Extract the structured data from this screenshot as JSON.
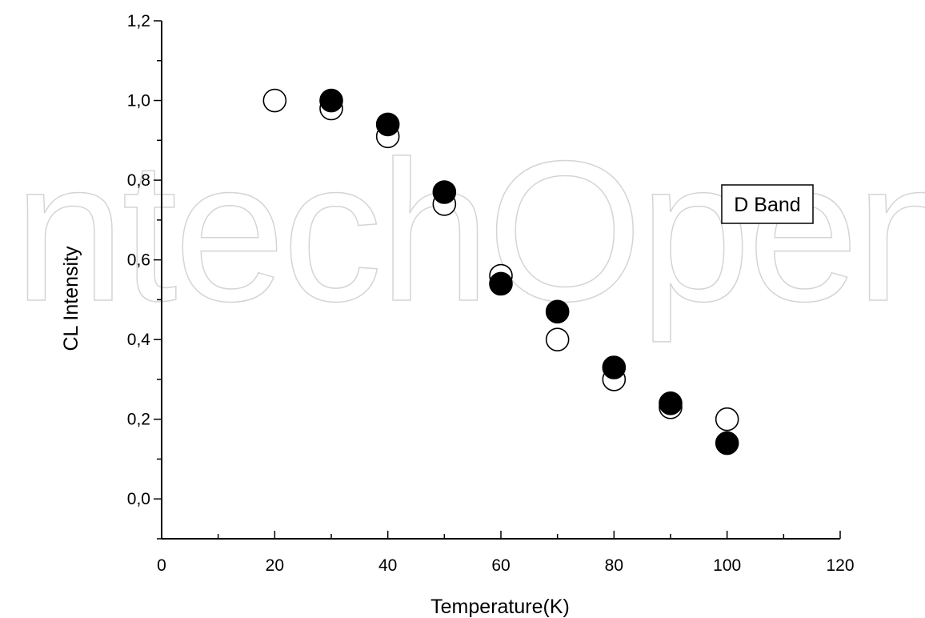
{
  "watermark": "IntechOpen",
  "chart_data": {
    "type": "scatter",
    "xlabel": "Temperature(K)",
    "ylabel": "CL Intensity",
    "xlim": [
      0,
      120
    ],
    "ylim": [
      -0.1,
      1.2
    ],
    "x_ticks": [
      "0",
      "20",
      "40",
      "60",
      "80",
      "100",
      "120"
    ],
    "y_ticks": [
      "0,0",
      "0,2",
      "0,4",
      "0,6",
      "0,8",
      "1,0",
      "1,2"
    ],
    "grid": false,
    "legend_box_text": "D Band",
    "series": [
      {
        "marker": "open-circle",
        "color": "#000000",
        "x": [
          20,
          30,
          40,
          50,
          60,
          70,
          80,
          90,
          100
        ],
        "y": [
          1.0,
          0.98,
          0.91,
          0.74,
          0.56,
          0.4,
          0.3,
          0.23,
          0.2
        ]
      },
      {
        "marker": "filled-circle",
        "color": "#000000",
        "x": [
          30,
          40,
          50,
          60,
          70,
          80,
          90,
          100
        ],
        "y": [
          1.0,
          0.94,
          0.77,
          0.54,
          0.47,
          0.33,
          0.24,
          0.14
        ]
      }
    ]
  }
}
